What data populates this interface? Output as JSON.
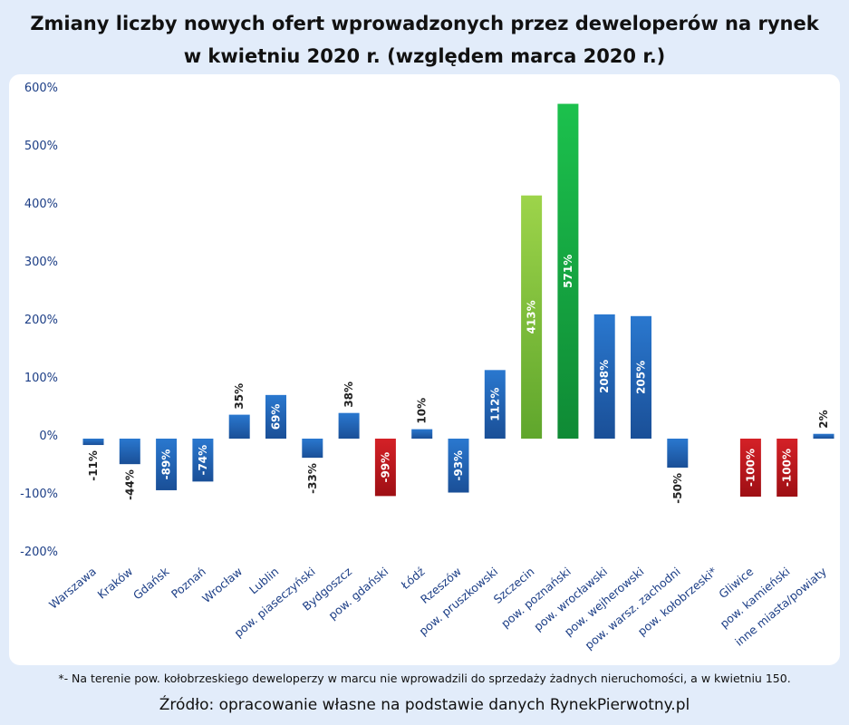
{
  "chart_data": {
    "type": "bar",
    "title_line1": "Zmiany liczby nowych ofert wprowadzonych przez deweloperów na rynek",
    "title_line2": "w kwietniu 2020 r. (względem marca 2020 r.)",
    "ylim": [
      -200,
      600
    ],
    "yticks": [
      600,
      500,
      400,
      300,
      200,
      100,
      0,
      -100,
      -200
    ],
    "yticklabels": [
      "600%",
      "500%",
      "400%",
      "300%",
      "200%",
      "100%",
      "0%",
      "-100%",
      "-200%"
    ],
    "grid": false,
    "bars": [
      {
        "category": "Warszawa",
        "value": -11,
        "label": "-11%",
        "color": "blue"
      },
      {
        "category": "Kraków",
        "value": -44,
        "label": "-44%",
        "color": "blue"
      },
      {
        "category": "Gdańsk",
        "value": -89,
        "label": "-89%",
        "color": "blue"
      },
      {
        "category": "Poznań",
        "value": -74,
        "label": "-74%",
        "color": "blue"
      },
      {
        "category": "Wrocław",
        "value": 35,
        "label": "35%",
        "color": "blue"
      },
      {
        "category": "Lublin",
        "value": 69,
        "label": "69%",
        "color": "blue"
      },
      {
        "category": "pow. piaseczyński",
        "value": -33,
        "label": "-33%",
        "color": "blue"
      },
      {
        "category": "Bydgoszcz",
        "value": 38,
        "label": "38%",
        "color": "blue"
      },
      {
        "category": "pow. gdański",
        "value": -99,
        "label": "-99%",
        "color": "red"
      },
      {
        "category": "Łódź",
        "value": 10,
        "label": "10%",
        "color": "blue"
      },
      {
        "category": "Rzeszów",
        "value": -93,
        "label": "-93%",
        "color": "blue"
      },
      {
        "category": "pow. pruszkowski",
        "value": 112,
        "label": "112%",
        "color": "blue"
      },
      {
        "category": "Szczecin",
        "value": 413,
        "label": "413%",
        "color": "lightgreen"
      },
      {
        "category": "pow. poznański",
        "value": 571,
        "label": "571%",
        "color": "green"
      },
      {
        "category": "pow. wrocławski",
        "value": 208,
        "label": "208%",
        "color": "blue"
      },
      {
        "category": "pow. wejherowski",
        "value": 205,
        "label": "205%",
        "color": "blue"
      },
      {
        "category": "pow. warsz. zachodni",
        "value": -50,
        "label": "-50%",
        "color": "blue"
      },
      {
        "category": "pow. kołobrzeski*",
        "value": null,
        "label": "",
        "color": "none"
      },
      {
        "category": "Gliwice",
        "value": -100,
        "label": "-100%",
        "color": "red"
      },
      {
        "category": "pow. kamieński",
        "value": -100,
        "label": "-100%",
        "color": "red"
      },
      {
        "category": "inne miasta/powiaty",
        "value": 2,
        "label": "2%",
        "color": "blue"
      }
    ],
    "colors": {
      "blue": "#1f5fae",
      "red": "#c8151b",
      "green": "#17a843",
      "lightgreen": "#8cc63f",
      "axis_text": "#1c3e86"
    }
  },
  "footnote": "*- Na terenie pow. kołobrzeskiego deweloperzy w marcu nie wprowadzili do sprzedaży żadnych nieruchomości, a w kwietniu 150.",
  "source": "Źródło: opracowanie własne na podstawie danych RynekPierwotny.pl"
}
